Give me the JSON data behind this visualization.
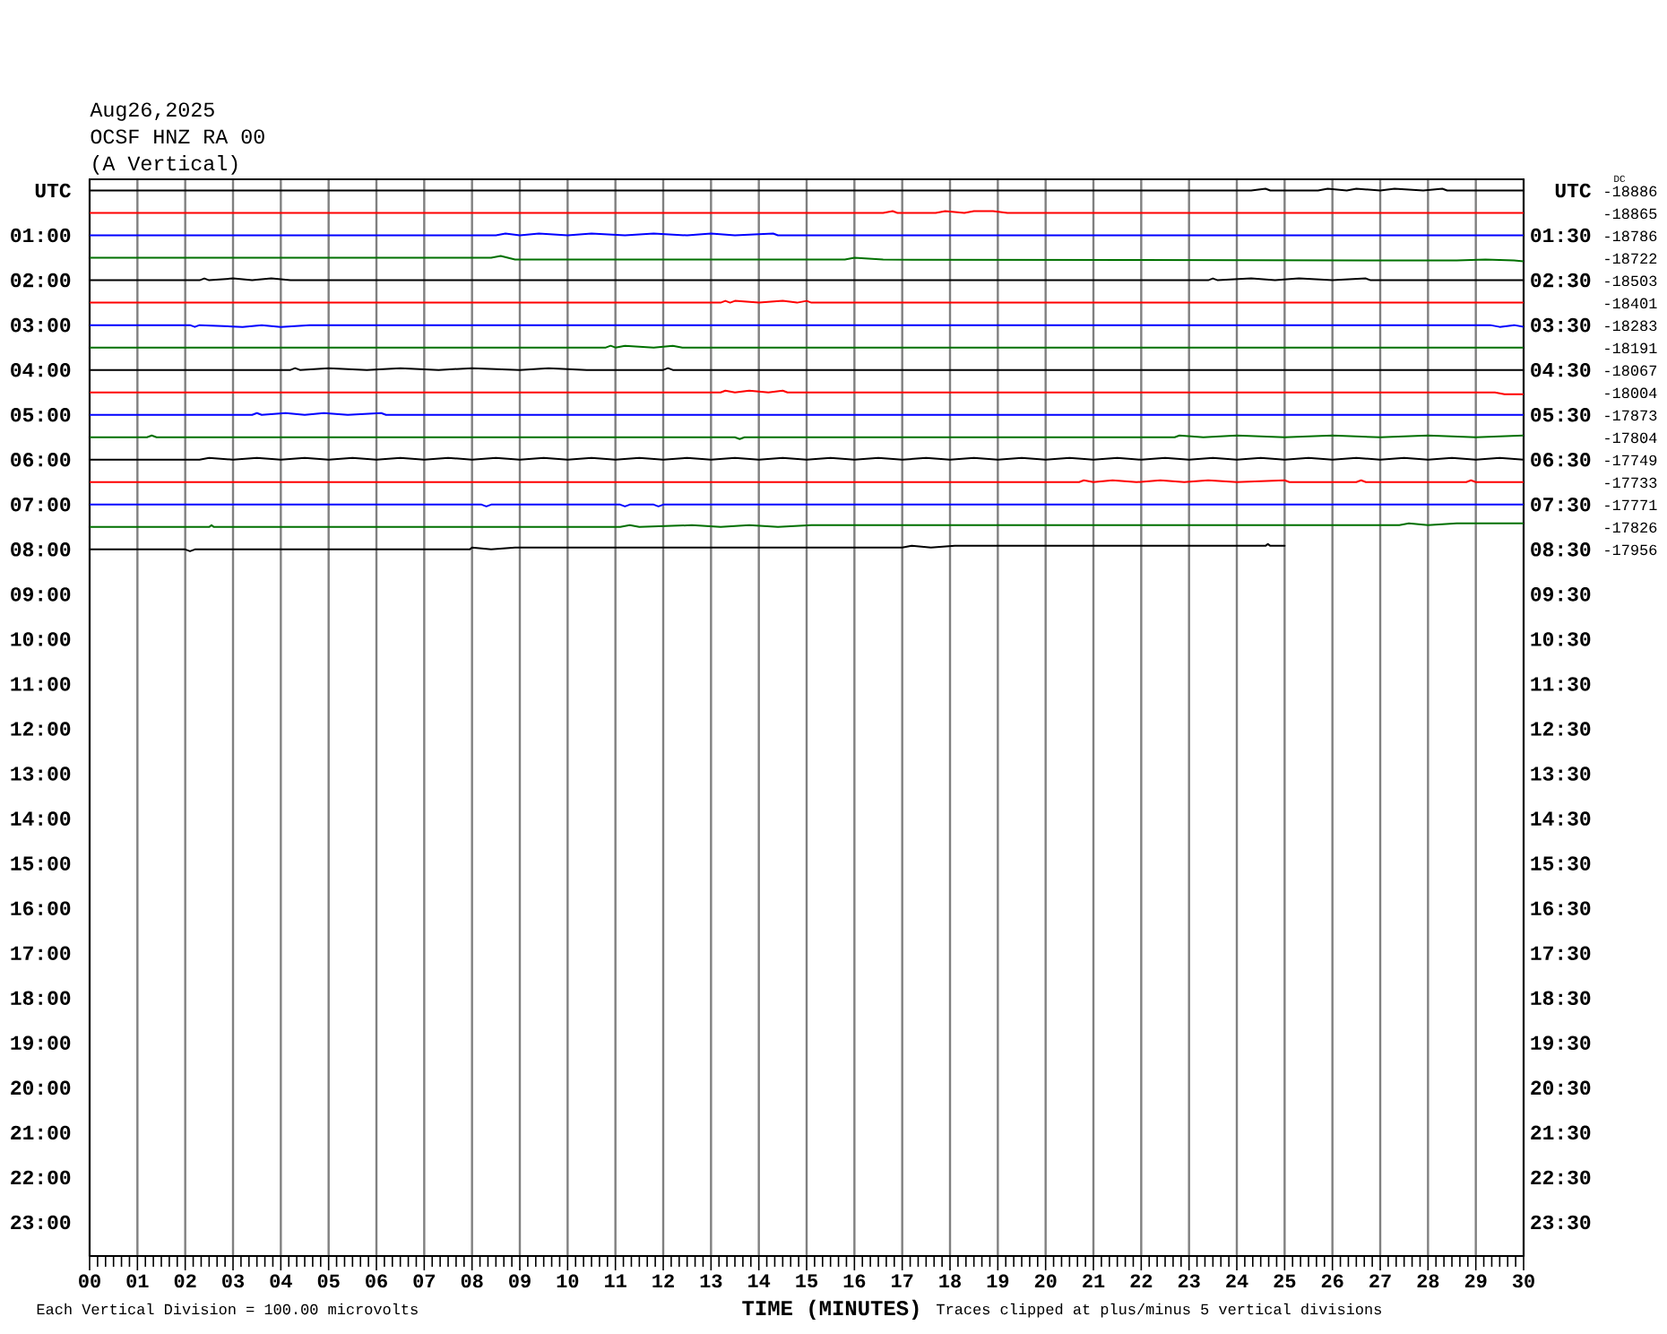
{
  "chart_data": {
    "type": "line",
    "title": "Aug26,2025",
    "subtitle": "OCSF HNZ RA 00",
    "xlabel": "TIME (MINUTES)",
    "annotations": [
      "(A Vertical)",
      "Each Vertical Division = 100.00 microvolts",
      "Traces clipped at plus/minus 5 vertical divisions",
      "DC",
      "-18886",
      "-18865",
      "-18786",
      "-18722",
      "-18503",
      "-18401",
      "-18283",
      "-18191",
      "-18067",
      "-18004",
      "-17873",
      "-17804",
      "-17749",
      "-17733",
      "-17771",
      "-17826",
      "-17956"
    ],
    "xlim": [
      0,
      30
    ],
    "xticks": [
      {
        "value": 0,
        "label": "00"
      },
      {
        "value": 1,
        "label": "01"
      },
      {
        "value": 2,
        "label": "02"
      },
      {
        "value": 3,
        "label": "03"
      },
      {
        "value": 4,
        "label": "04"
      },
      {
        "value": 5,
        "label": "05"
      },
      {
        "value": 6,
        "label": "06"
      },
      {
        "value": 7,
        "label": "07"
      },
      {
        "value": 8,
        "label": "08"
      },
      {
        "value": 9,
        "label": "09"
      },
      10,
      11,
      12,
      13,
      14,
      15,
      16,
      17,
      18,
      19,
      20,
      21,
      22,
      23,
      24,
      25,
      26,
      27,
      28,
      29,
      30
    ],
    "ylim": [
      23.75,
      -0.25
    ],
    "yticks": [
      {
        "value": 0,
        "label": "UTC"
      },
      {
        "value": 1,
        "label": "01:00"
      },
      {
        "value": 2,
        "label": "02:00"
      },
      {
        "value": 3,
        "label": "03:00"
      },
      {
        "value": 4,
        "label": "04:00"
      },
      {
        "value": 5,
        "label": "05:00"
      },
      {
        "value": 6,
        "label": "06:00"
      },
      {
        "value": 7,
        "label": "07:00"
      },
      {
        "value": 8,
        "label": "08:00"
      },
      {
        "value": 9,
        "label": "09:00"
      },
      {
        "value": 10,
        "label": "10:00"
      },
      {
        "value": 11,
        "label": "11:00"
      },
      {
        "value": 12,
        "label": "12:00"
      },
      {
        "value": 13,
        "label": "13:00"
      },
      {
        "value": 14,
        "label": "14:00"
      },
      {
        "value": 15,
        "label": "15:00"
      },
      {
        "value": 16,
        "label": "16:00"
      },
      {
        "value": 17,
        "label": "17:00"
      },
      {
        "value": 18,
        "label": "18:00"
      },
      {
        "value": 19,
        "label": "19:00"
      },
      {
        "value": 20,
        "label": "20:00"
      },
      {
        "value": 21,
        "label": "21:00"
      },
      {
        "value": 22,
        "label": "22:00"
      },
      {
        "value": 23,
        "label": "23:00"
      }
    ],
    "y2lim": [
      24.25,
      0.25
    ],
    "y2ticks": [
      {
        "value": 0.5,
        "label": "UTC"
      },
      {
        "value": 1.5,
        "label": "01:30"
      },
      {
        "value": 2.5,
        "label": "02:30"
      },
      {
        "value": 3.5,
        "label": "03:30"
      },
      {
        "value": 4.5,
        "label": "04:30"
      },
      {
        "value": 5.5,
        "label": "05:30"
      },
      {
        "value": 6.5,
        "label": "06:30"
      },
      {
        "value": 7.5,
        "label": "07:30"
      },
      {
        "value": 8.5,
        "label": "08:30"
      },
      {
        "value": 9.5,
        "label": "09:30"
      },
      {
        "value": 10.5,
        "label": "10:30"
      },
      {
        "value": 11.5,
        "label": "11:30"
      },
      {
        "value": 12.5,
        "label": "12:30"
      },
      {
        "value": 13.5,
        "label": "13:30"
      },
      {
        "value": 14.5,
        "label": "14:30"
      },
      {
        "value": 15.5,
        "label": "15:30"
      },
      {
        "value": 16.5,
        "label": "16:30"
      },
      {
        "value": 17.5,
        "label": "17:30"
      },
      {
        "value": 18.5,
        "label": "18:30"
      },
      {
        "value": 19.5,
        "label": "19:30"
      },
      {
        "value": 20.5,
        "label": "20:30"
      },
      {
        "value": 21.5,
        "label": "21:30"
      },
      {
        "value": 22.5,
        "label": "22:30"
      },
      {
        "value": 23.5,
        "label": "23:30"
      }
    ],
    "grid": "x",
    "series": [
      {
        "color": "#000000",
        "x": [
          0,
          24.3,
          24.6,
          24.7,
          25.7,
          25.9,
          26.3,
          26.5,
          27.0,
          27.3,
          27.9,
          28.3,
          28.4,
          30
        ],
        "values": [
          0,
          0,
          -0.04,
          0,
          0,
          -0.04,
          0,
          -0.04,
          0,
          -0.04,
          0,
          -0.04,
          0,
          0
        ]
      },
      {
        "color": "#ff0000",
        "x": [
          0,
          16.6,
          16.8,
          16.9,
          17.7,
          17.9,
          18.3,
          18.5,
          18.9,
          19.2,
          30
        ],
        "values": [
          0.5,
          0.5,
          0.46,
          0.5,
          0.5,
          0.46,
          0.5,
          0.46,
          0.46,
          0.5,
          0.5
        ]
      },
      {
        "color": "#0000ff",
        "x": [
          0,
          8.5,
          8.7,
          9.0,
          9.4,
          10.0,
          10.5,
          11.2,
          11.8,
          12.5,
          13.0,
          13.5,
          14.3,
          14.4,
          30
        ],
        "values": [
          1,
          1,
          0.96,
          1,
          0.96,
          1,
          0.96,
          1,
          0.96,
          1,
          0.96,
          1,
          0.96,
          1,
          1
        ]
      },
      {
        "color": "#007000",
        "x": [
          0,
          8.4,
          8.6,
          8.9,
          15.8,
          16.0,
          16.6,
          28.6,
          29.2,
          29.8,
          30
        ],
        "values": [
          1.5,
          1.5,
          1.46,
          1.54,
          1.54,
          1.5,
          1.54,
          1.56,
          1.54,
          1.56,
          1.58
        ]
      },
      {
        "color": "#000000",
        "x": [
          0,
          2.3,
          2.4,
          2.5,
          3.0,
          3.4,
          3.8,
          4.2,
          23.4,
          23.5,
          23.6,
          24.3,
          24.8,
          25.3,
          26.0,
          26.7,
          26.8,
          30
        ],
        "values": [
          2,
          2,
          1.96,
          2,
          1.96,
          2,
          1.96,
          2,
          2,
          1.96,
          2,
          1.96,
          2,
          1.96,
          2,
          1.96,
          2,
          2
        ]
      },
      {
        "color": "#ff0000",
        "x": [
          0,
          13.2,
          13.3,
          13.4,
          13.5,
          14.0,
          14.5,
          14.8,
          15.0,
          15.1,
          30
        ],
        "values": [
          2.5,
          2.5,
          2.46,
          2.5,
          2.46,
          2.5,
          2.46,
          2.5,
          2.46,
          2.5,
          2.5
        ]
      },
      {
        "color": "#0000ff",
        "x": [
          0,
          2.1,
          2.2,
          2.3,
          3.2,
          3.6,
          4.0,
          4.6,
          29.3,
          29.5,
          29.8,
          30
        ],
        "values": [
          3,
          3,
          3.04,
          3,
          3.04,
          3,
          3.04,
          3,
          3,
          3.04,
          3,
          3.04
        ]
      },
      {
        "color": "#007000",
        "x": [
          0,
          10.8,
          10.9,
          11.0,
          11.2,
          11.8,
          12.2,
          12.4,
          30
        ],
        "values": [
          3.5,
          3.5,
          3.46,
          3.5,
          3.46,
          3.5,
          3.46,
          3.5,
          3.5
        ]
      },
      {
        "color": "#000000",
        "x": [
          0,
          4.2,
          4.3,
          4.4,
          5.0,
          5.8,
          6.5,
          7.3,
          8.0,
          9.0,
          9.6,
          10.4,
          12.0,
          12.1,
          12.2,
          30
        ],
        "values": [
          4,
          4,
          3.96,
          4,
          3.96,
          4,
          3.96,
          4,
          3.96,
          4,
          3.96,
          4,
          4,
          3.96,
          4,
          4
        ]
      },
      {
        "color": "#ff0000",
        "x": [
          0,
          13.2,
          13.3,
          13.5,
          13.8,
          14.2,
          14.5,
          14.6,
          29.4,
          29.6,
          30
        ],
        "values": [
          4.5,
          4.5,
          4.46,
          4.5,
          4.46,
          4.5,
          4.46,
          4.5,
          4.5,
          4.54,
          4.54
        ]
      },
      {
        "color": "#0000ff",
        "x": [
          0,
          3.4,
          3.5,
          3.6,
          4.1,
          4.5,
          4.9,
          5.4,
          6.1,
          6.2,
          30
        ],
        "values": [
          5,
          5,
          4.96,
          5,
          4.96,
          5,
          4.96,
          5,
          4.96,
          5,
          5
        ]
      },
      {
        "color": "#007000",
        "x": [
          0,
          1.2,
          1.3,
          1.4,
          13.5,
          13.6,
          13.7,
          22.7,
          22.8,
          23.3,
          24.0,
          25.0,
          26.0,
          27.0,
          28.0,
          29.0,
          30
        ],
        "values": [
          5.5,
          5.5,
          5.46,
          5.5,
          5.5,
          5.54,
          5.5,
          5.5,
          5.46,
          5.5,
          5.46,
          5.5,
          5.46,
          5.5,
          5.46,
          5.5,
          5.46
        ]
      },
      {
        "color": "#000000",
        "x": [
          0,
          2.3,
          2.5,
          3,
          3.5,
          4,
          4.5,
          5,
          5.5,
          6,
          6.5,
          7,
          7.5,
          8,
          8.5,
          9,
          9.5,
          10,
          10.5,
          11,
          11.5,
          12,
          12.5,
          13,
          13.5,
          14,
          14.5,
          15,
          15.5,
          16,
          16.5,
          17,
          17.5,
          18,
          18.5,
          19,
          19.5,
          20,
          20.5,
          21,
          21.5,
          22,
          22.5,
          23,
          23.5,
          24,
          24.5,
          25,
          25.5,
          26,
          26.5,
          27,
          27.5,
          28,
          28.5,
          29,
          29.5,
          30
        ],
        "values": [
          6,
          6,
          5.96,
          6,
          5.96,
          6,
          5.96,
          6,
          5.96,
          6,
          5.96,
          6,
          5.96,
          6,
          5.96,
          6,
          5.96,
          6,
          5.96,
          6,
          5.96,
          6,
          5.96,
          6,
          5.96,
          6,
          5.96,
          6,
          5.96,
          6,
          5.96,
          6,
          5.96,
          6,
          5.96,
          6,
          5.96,
          6,
          5.96,
          6,
          5.96,
          6,
          5.96,
          6,
          5.96,
          6,
          5.96,
          6,
          5.96,
          6,
          5.96,
          6,
          5.96,
          6,
          5.96,
          6,
          5.96,
          6
        ]
      },
      {
        "color": "#ff0000",
        "x": [
          0,
          20.7,
          20.8,
          21.0,
          21.4,
          21.9,
          22.4,
          22.9,
          23.4,
          24.0,
          25.0,
          25.1,
          26.5,
          26.6,
          26.7,
          28.8,
          28.9,
          29.0,
          30
        ],
        "values": [
          6.5,
          6.5,
          6.46,
          6.5,
          6.46,
          6.5,
          6.46,
          6.5,
          6.46,
          6.5,
          6.46,
          6.5,
          6.5,
          6.46,
          6.5,
          6.5,
          6.46,
          6.5,
          6.5
        ]
      },
      {
        "color": "#0000ff",
        "x": [
          0,
          8.2,
          8.3,
          8.4,
          11.1,
          11.2,
          11.3,
          11.8,
          11.9,
          12.0,
          30
        ],
        "values": [
          7,
          7,
          7.04,
          7,
          7,
          7.04,
          7,
          7,
          7.04,
          7,
          7
        ]
      },
      {
        "color": "#007000",
        "x": [
          0,
          2.5,
          2.55,
          2.6,
          11.1,
          11.3,
          11.5,
          12.6,
          13.2,
          13.8,
          14.4,
          15.1,
          16.1,
          27.4,
          27.6,
          28.0,
          28.6,
          30
        ],
        "values": [
          7.5,
          7.5,
          7.46,
          7.5,
          7.5,
          7.46,
          7.5,
          7.46,
          7.5,
          7.46,
          7.5,
          7.46,
          7.46,
          7.46,
          7.42,
          7.46,
          7.42,
          7.42
        ]
      },
      {
        "color": "#000000",
        "x": [
          0,
          2.0,
          2.1,
          2.2,
          7.95,
          8.0,
          8.4,
          8.9,
          17.0,
          17.2,
          17.6,
          18.1,
          24.6,
          24.65,
          24.7,
          25
        ],
        "values": [
          8,
          8,
          8.04,
          8,
          8,
          7.96,
          8,
          7.96,
          7.96,
          7.92,
          7.96,
          7.92,
          7.92,
          7.88,
          7.92,
          7.92
        ]
      }
    ]
  }
}
